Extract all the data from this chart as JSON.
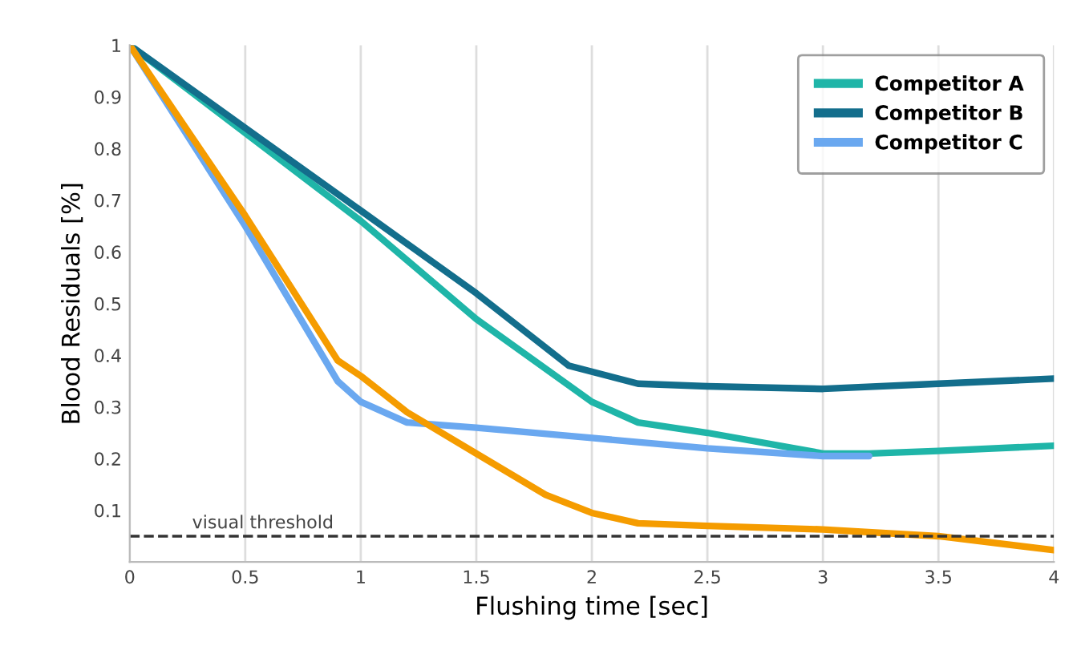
{
  "chart_data": {
    "type": "line",
    "xlabel": "Flushing time [sec]",
    "ylabel": "Blood Residuals [%]",
    "xlim": [
      0,
      4
    ],
    "ylim": [
      0,
      1
    ],
    "xticks": [
      0,
      0.5,
      1,
      1.5,
      2,
      2.5,
      3,
      3.5,
      4
    ],
    "yticks": [
      0.1,
      0.2,
      0.3,
      0.4,
      0.5,
      0.6,
      0.7,
      0.8,
      0.9,
      1
    ],
    "grid": "x",
    "legend": "top right",
    "marker": "none",
    "line_style": "solid",
    "series": [
      {
        "name": "Competitor A",
        "color": "#1fb5a8",
        "x": [
          0,
          0.5,
          1,
          1.5,
          2,
          2.2,
          2.5,
          3,
          3.2,
          3.5,
          4
        ],
        "values": [
          1,
          0.83,
          0.66,
          0.47,
          0.31,
          0.27,
          0.25,
          0.21,
          0.21,
          0.215,
          0.225
        ]
      },
      {
        "name": "Competitor B",
        "color": "#136e8c",
        "x": [
          0,
          0.5,
          1,
          1.5,
          1.9,
          2.2,
          2.5,
          3,
          3.5,
          4
        ],
        "values": [
          1,
          0.84,
          0.68,
          0.52,
          0.38,
          0.345,
          0.34,
          0.335,
          0.345,
          0.355
        ]
      },
      {
        "name": "Competitor C",
        "color": "#6aa8f0",
        "x": [
          0,
          0.5,
          0.9,
          1,
          1.2,
          1.5,
          2,
          2.5,
          3,
          3.2
        ],
        "values": [
          1,
          0.65,
          0.35,
          0.31,
          0.27,
          0.26,
          0.24,
          0.22,
          0.205,
          0.205
        ]
      },
      {
        "color": "#f59c00",
        "x": [
          0,
          0.5,
          0.9,
          1,
          1.2,
          1.5,
          1.8,
          2,
          2.2,
          2.5,
          3,
          3.5,
          4
        ],
        "values": [
          1,
          0.67,
          0.39,
          0.36,
          0.29,
          0.21,
          0.13,
          0.095,
          0.075,
          0.07,
          0.063,
          0.05,
          0.023
        ]
      }
    ],
    "ref_lines": [
      {
        "axis": "y",
        "value": 0.05,
        "label": "visual threshold",
        "color": "#333333",
        "line_style": "dashed"
      }
    ]
  }
}
